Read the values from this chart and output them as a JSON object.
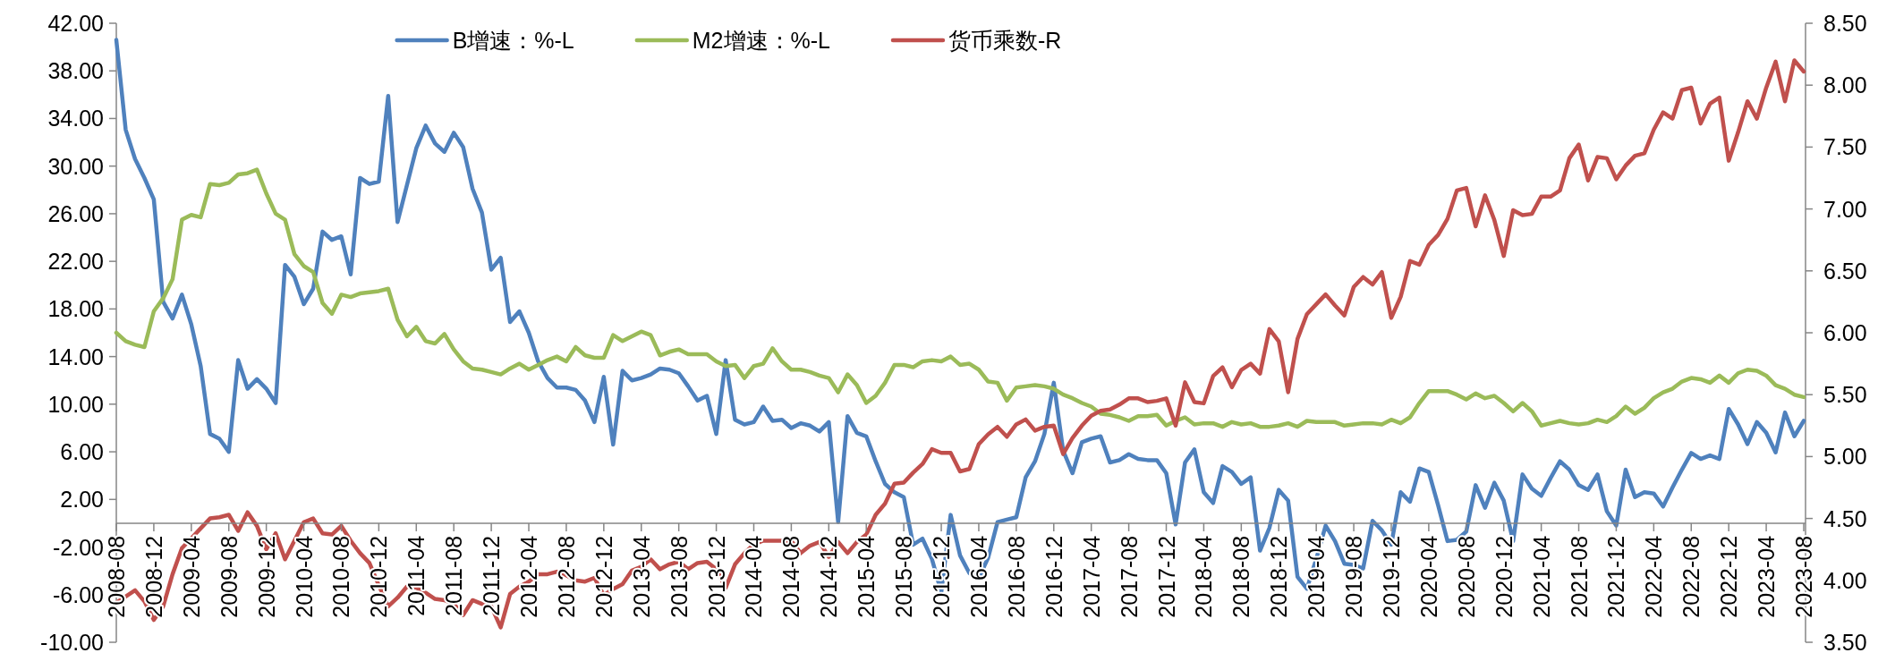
{
  "chart_data": {
    "type": "line",
    "legend": "top",
    "xlim": [
      "2008-08",
      "2023-08"
    ],
    "xticks": [
      "2008-08",
      "2008-12",
      "2009-04",
      "2009-08",
      "2009-12",
      "2010-04",
      "2010-08",
      "2010-12",
      "2011-04",
      "2011-08",
      "2011-12",
      "2012-04",
      "2012-08",
      "2012-12",
      "2013-04",
      "2013-08",
      "2013-12",
      "2014-04",
      "2014-08",
      "2014-12",
      "2015-04",
      "2015-08",
      "2015-12",
      "2016-04",
      "2016-08",
      "2016-12",
      "2017-04",
      "2017-08",
      "2017-12",
      "2018-04",
      "2018-08",
      "2018-12",
      "2019-04",
      "2019-08",
      "2019-12",
      "2020-04",
      "2020-08",
      "2020-12",
      "2021-04",
      "2021-08",
      "2021-12",
      "2022-04",
      "2022-08",
      "2022-12",
      "2023-04",
      "2023-08"
    ],
    "ylim": [
      -10,
      42
    ],
    "yticks": [
      {
        "value": -10,
        "label": "-10.00"
      },
      {
        "value": -6,
        "label": "-6.00"
      },
      {
        "value": -2,
        "label": "-2.00"
      },
      {
        "value": 2,
        "label": "2.00"
      },
      {
        "value": 6,
        "label": "6.00"
      },
      {
        "value": 10,
        "label": "10.00"
      },
      {
        "value": 14,
        "label": "14.00"
      },
      {
        "value": 18,
        "label": "18.00"
      },
      {
        "value": 22,
        "label": "22.00"
      },
      {
        "value": 26,
        "label": "26.00"
      },
      {
        "value": 30,
        "label": "30.00"
      },
      {
        "value": 34,
        "label": "34.00"
      },
      {
        "value": 38,
        "label": "38.00"
      },
      {
        "value": 42,
        "label": "42.00"
      }
    ],
    "y2lim": [
      3.5,
      8.5
    ],
    "y2ticks": [
      {
        "value": 3.5,
        "label": "3.50"
      },
      {
        "value": 4,
        "label": "4.00"
      },
      {
        "value": 4.5,
        "label": "4.50"
      },
      {
        "value": 5,
        "label": "5.00"
      },
      {
        "value": 5.5,
        "label": "5.50"
      },
      {
        "value": 6,
        "label": "6.00"
      },
      {
        "value": 6.5,
        "label": "6.50"
      },
      {
        "value": 7,
        "label": "7.00"
      },
      {
        "value": 7.5,
        "label": "7.50"
      },
      {
        "value": 8,
        "label": "8.00"
      },
      {
        "value": 8.5,
        "label": "8.50"
      }
    ],
    "x": [
      "2008-08",
      "2008-09",
      "2008-10",
      "2008-11",
      "2008-12",
      "2009-01",
      "2009-02",
      "2009-03",
      "2009-04",
      "2009-05",
      "2009-06",
      "2009-07",
      "2009-08",
      "2009-09",
      "2009-10",
      "2009-11",
      "2009-12",
      "2010-01",
      "2010-02",
      "2010-03",
      "2010-04",
      "2010-05",
      "2010-06",
      "2010-07",
      "2010-08",
      "2010-09",
      "2010-10",
      "2010-11",
      "2010-12",
      "2011-01",
      "2011-02",
      "2011-03",
      "2011-04",
      "2011-05",
      "2011-06",
      "2011-07",
      "2011-08",
      "2011-09",
      "2011-10",
      "2011-11",
      "2011-12",
      "2012-01",
      "2012-02",
      "2012-03",
      "2012-04",
      "2012-05",
      "2012-06",
      "2012-07",
      "2012-08",
      "2012-09",
      "2012-10",
      "2012-11",
      "2012-12",
      "2013-01",
      "2013-02",
      "2013-03",
      "2013-04",
      "2013-05",
      "2013-06",
      "2013-07",
      "2013-08",
      "2013-09",
      "2013-10",
      "2013-11",
      "2013-12",
      "2014-01",
      "2014-02",
      "2014-03",
      "2014-04",
      "2014-05",
      "2014-06",
      "2014-07",
      "2014-08",
      "2014-09",
      "2014-10",
      "2014-11",
      "2014-12",
      "2015-01",
      "2015-02",
      "2015-03",
      "2015-04",
      "2015-05",
      "2015-06",
      "2015-07",
      "2015-08",
      "2015-09",
      "2015-10",
      "2015-11",
      "2015-12",
      "2016-01",
      "2016-02",
      "2016-03",
      "2016-04",
      "2016-05",
      "2016-06",
      "2016-07",
      "2016-08",
      "2016-09",
      "2016-10",
      "2016-11",
      "2016-12",
      "2017-01",
      "2017-02",
      "2017-03",
      "2017-04",
      "2017-05",
      "2017-06",
      "2017-07",
      "2017-08",
      "2017-09",
      "2017-10",
      "2017-11",
      "2017-12",
      "2018-01",
      "2018-02",
      "2018-03",
      "2018-04",
      "2018-05",
      "2018-06",
      "2018-07",
      "2018-08",
      "2018-09",
      "2018-10",
      "2018-11",
      "2018-12",
      "2019-01",
      "2019-02",
      "2019-03",
      "2019-04",
      "2019-05",
      "2019-06",
      "2019-07",
      "2019-08",
      "2019-09",
      "2019-10",
      "2019-11",
      "2019-12",
      "2020-01",
      "2020-02",
      "2020-03",
      "2020-04",
      "2020-05",
      "2020-06",
      "2020-07",
      "2020-08",
      "2020-09",
      "2020-10",
      "2020-11",
      "2020-12",
      "2021-01",
      "2021-02",
      "2021-03",
      "2021-04",
      "2021-05",
      "2021-06",
      "2021-07",
      "2021-08",
      "2021-09",
      "2021-10",
      "2021-11",
      "2021-12",
      "2022-01",
      "2022-02",
      "2022-03",
      "2022-04",
      "2022-05",
      "2022-06",
      "2022-07",
      "2022-08",
      "2022-09",
      "2022-10",
      "2022-11",
      "2022-12",
      "2023-01",
      "2023-02",
      "2023-03",
      "2023-04",
      "2023-05",
      "2023-06",
      "2023-07",
      "2023-08"
    ],
    "series": [
      {
        "name": "B增速：%-L",
        "color": "#4f81bd",
        "values": [
          40.6,
          33.05,
          30.6,
          29.0,
          27.2,
          18.6,
          17.2,
          19.2,
          16.7,
          13.2,
          7.5,
          7.1,
          6.0,
          13.7,
          11.3,
          12.1,
          11.3,
          10.1,
          21.7,
          20.7,
          18.4,
          19.7,
          24.5,
          23.8,
          24.1,
          20.9,
          29.0,
          28.5,
          28.7,
          35.9,
          25.3,
          28.4,
          31.5,
          33.4,
          31.9,
          31.2,
          32.8,
          31.6,
          28.1,
          26.1,
          21.3,
          22.3,
          16.9,
          17.8,
          16.0,
          13.6,
          12.2,
          11.4,
          11.4,
          11.2,
          10.3,
          8.5,
          12.3,
          6.6,
          12.8,
          12.0,
          12.2,
          12.5,
          13.0,
          12.9,
          12.6,
          11.5,
          10.3,
          10.7,
          7.5,
          13.7,
          8.7,
          8.3,
          8.5,
          9.8,
          8.6,
          8.7,
          8.0,
          8.4,
          8.2,
          7.7,
          8.5,
          0.1,
          9.0,
          7.6,
          7.3,
          5.2,
          3.3,
          2.6,
          2.2,
          -1.8,
          -1.3,
          -3.0,
          -5.8,
          0.7,
          -2.7,
          -4.2,
          -4.6,
          -2.9,
          0.1,
          0.3,
          0.5,
          3.85,
          5.2,
          7.5,
          11.8,
          6.1,
          4.2,
          6.8,
          7.1,
          7.3,
          5.1,
          5.3,
          5.8,
          5.4,
          5.3,
          5.3,
          4.2,
          -0.1,
          5.1,
          6.2,
          2.6,
          1.7,
          4.8,
          4.3,
          3.3,
          3.85,
          -2.3,
          -0.4,
          2.8,
          1.9,
          -4.5,
          -5.5,
          -3.0,
          -0.2,
          -1.5,
          -3.4,
          -3.5,
          -3.8,
          0.2,
          -0.6,
          -1.8,
          2.6,
          1.8,
          4.6,
          4.3,
          1.5,
          -1.5,
          -1.4,
          -0.7,
          3.2,
          1.3,
          3.4,
          1.9,
          -1.5,
          4.1,
          2.9,
          2.3,
          3.8,
          5.2,
          4.5,
          3.2,
          2.8,
          4.1,
          1.0,
          -0.2,
          4.5,
          2.2,
          2.6,
          2.5,
          1.4,
          3.0,
          4.5,
          5.9,
          5.4,
          5.7,
          5.4,
          9.6,
          8.3,
          6.65,
          8.5,
          7.6,
          5.95,
          9.3,
          7.3,
          8.6
        ]
      },
      {
        "name": "M2增速：%-L",
        "color": "#9bbb59",
        "values": [
          16.0,
          15.3,
          15.0,
          14.8,
          17.8,
          18.9,
          20.5,
          25.5,
          25.9,
          25.7,
          28.5,
          28.4,
          28.6,
          29.3,
          29.4,
          29.7,
          27.7,
          26.0,
          25.5,
          22.6,
          21.6,
          21.1,
          18.5,
          17.6,
          19.2,
          19.0,
          19.3,
          19.4,
          19.5,
          19.7,
          17.1,
          15.7,
          16.5,
          15.3,
          15.1,
          15.9,
          14.6,
          13.6,
          13.0,
          12.9,
          12.7,
          12.5,
          13.0,
          13.4,
          12.9,
          13.3,
          13.7,
          14.0,
          13.6,
          14.8,
          14.1,
          13.9,
          13.9,
          15.8,
          15.3,
          15.7,
          16.1,
          15.8,
          14.1,
          14.4,
          14.6,
          14.2,
          14.2,
          14.2,
          13.6,
          13.2,
          13.3,
          12.2,
          13.2,
          13.4,
          14.7,
          13.6,
          12.9,
          12.9,
          12.7,
          12.4,
          12.2,
          11.0,
          12.5,
          11.6,
          10.1,
          10.7,
          11.8,
          13.3,
          13.3,
          13.1,
          13.6,
          13.7,
          13.6,
          14.0,
          13.3,
          13.4,
          12.9,
          11.9,
          11.8,
          10.3,
          11.4,
          11.5,
          11.6,
          11.5,
          11.3,
          10.8,
          10.5,
          10.1,
          9.8,
          9.2,
          9.1,
          8.9,
          8.6,
          9.0,
          9.0,
          9.1,
          8.2,
          8.6,
          8.9,
          8.3,
          8.4,
          8.4,
          8.1,
          8.5,
          8.3,
          8.4,
          8.1,
          8.1,
          8.2,
          8.4,
          8.1,
          8.6,
          8.5,
          8.5,
          8.5,
          8.2,
          8.3,
          8.4,
          8.4,
          8.3,
          8.7,
          8.4,
          8.9,
          10.1,
          11.1,
          11.1,
          11.1,
          10.8,
          10.4,
          10.9,
          10.5,
          10.7,
          10.1,
          9.4,
          10.1,
          9.4,
          8.2,
          8.4,
          8.6,
          8.4,
          8.3,
          8.4,
          8.7,
          8.5,
          9.0,
          9.8,
          9.2,
          9.7,
          10.5,
          11.0,
          11.3,
          11.9,
          12.2,
          12.1,
          11.8,
          12.4,
          11.8,
          12.6,
          12.9,
          12.8,
          12.4,
          11.6,
          11.3,
          10.8,
          10.6
        ]
      },
      {
        "name": "货币乘数-R",
        "color": "#c0504d",
        "axis": "y2",
        "values": [
          3.82,
          3.87,
          3.92,
          3.83,
          3.68,
          3.79,
          4.05,
          4.26,
          4.34,
          4.42,
          4.5,
          4.51,
          4.53,
          4.4,
          4.55,
          4.44,
          4.25,
          4.38,
          4.17,
          4.32,
          4.47,
          4.5,
          4.38,
          4.37,
          4.44,
          4.32,
          4.22,
          4.14,
          3.96,
          3.79,
          3.86,
          3.95,
          3.94,
          3.9,
          3.85,
          3.84,
          3.81,
          3.72,
          3.84,
          3.81,
          3.79,
          3.62,
          3.89,
          3.95,
          3.99,
          4.05,
          4.05,
          4.07,
          4.04,
          4.0,
          3.99,
          4.02,
          3.88,
          3.93,
          3.97,
          4.08,
          4.11,
          4.17,
          4.09,
          4.13,
          4.15,
          4.09,
          4.14,
          4.15,
          4.09,
          3.94,
          4.13,
          4.22,
          4.29,
          4.32,
          4.32,
          4.32,
          4.32,
          4.22,
          4.28,
          4.31,
          4.19,
          4.31,
          4.22,
          4.31,
          4.37,
          4.53,
          4.62,
          4.78,
          4.79,
          4.87,
          4.94,
          5.06,
          5.03,
          5.03,
          4.88,
          4.9,
          5.1,
          5.18,
          5.24,
          5.16,
          5.26,
          5.3,
          5.21,
          5.24,
          5.25,
          5.02,
          5.15,
          5.25,
          5.33,
          5.37,
          5.38,
          5.42,
          5.47,
          5.47,
          5.44,
          5.45,
          5.47,
          5.25,
          5.6,
          5.44,
          5.43,
          5.65,
          5.72,
          5.56,
          5.7,
          5.75,
          5.67,
          6.03,
          5.93,
          5.52,
          5.95,
          6.15,
          6.23,
          6.31,
          6.22,
          6.14,
          6.37,
          6.45,
          6.39,
          6.49,
          6.12,
          6.29,
          6.58,
          6.55,
          6.71,
          6.79,
          6.92,
          7.15,
          7.17,
          6.86,
          7.11,
          6.91,
          6.62,
          6.99,
          6.95,
          6.96,
          7.1,
          7.1,
          7.15,
          7.41,
          7.52,
          7.23,
          7.42,
          7.41,
          7.24,
          7.35,
          7.43,
          7.45,
          7.64,
          7.78,
          7.73,
          7.96,
          7.98,
          7.69,
          7.85,
          7.9,
          7.39,
          7.62,
          7.87,
          7.73,
          7.98,
          8.19,
          7.87,
          8.2,
          8.11
        ]
      }
    ]
  }
}
